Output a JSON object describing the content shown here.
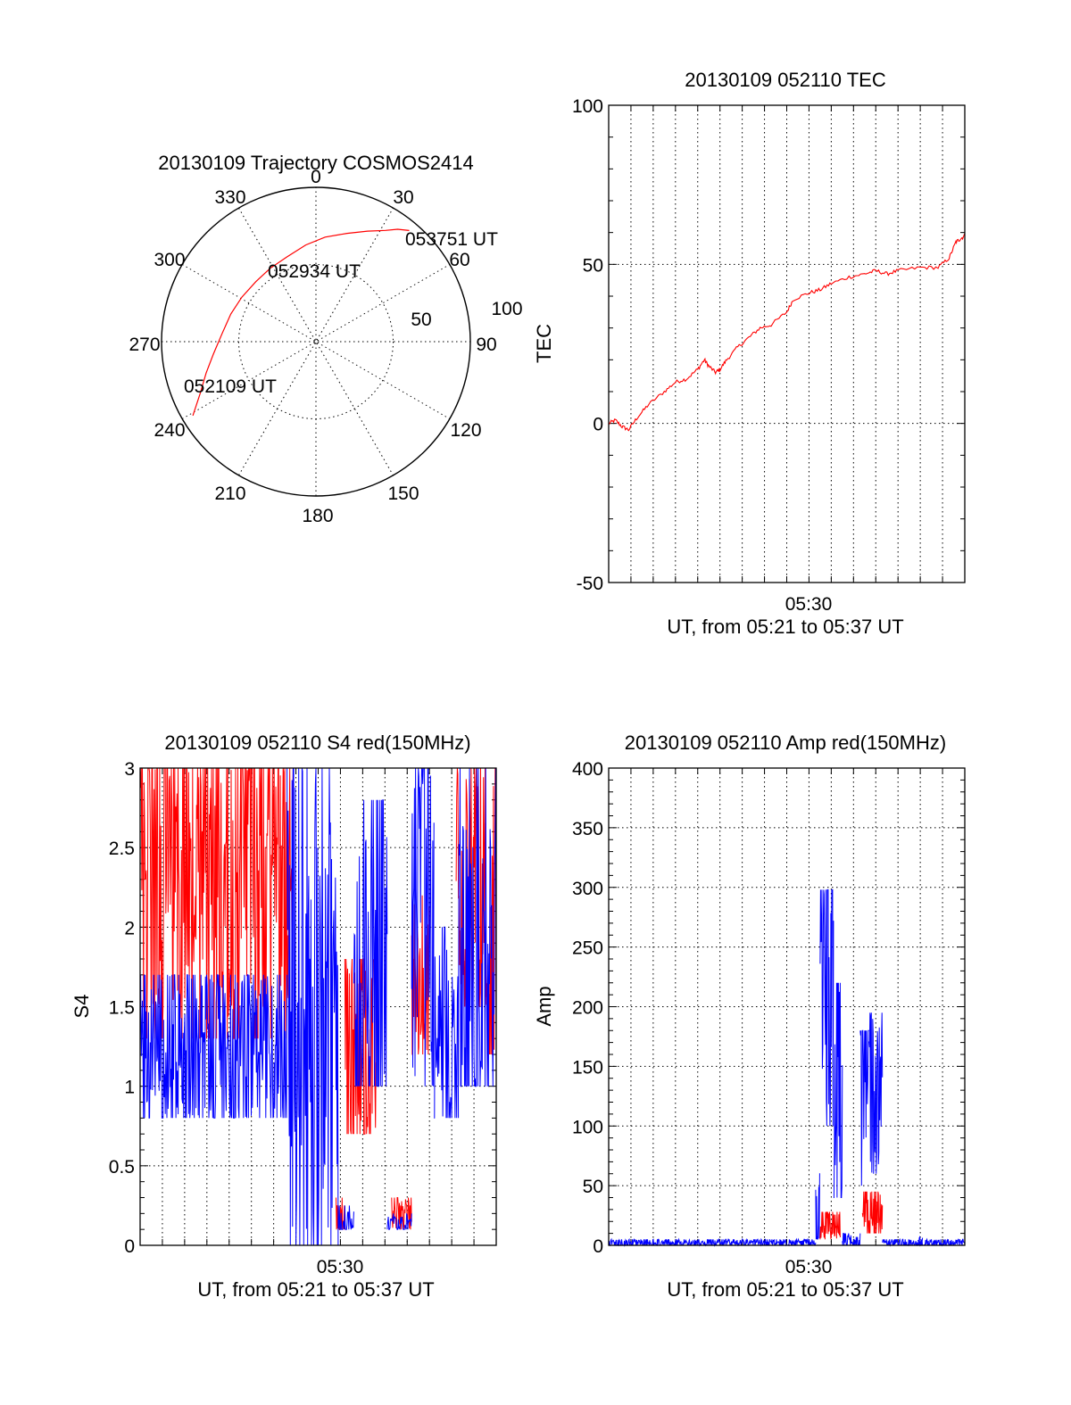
{
  "colors": {
    "red": "#ff0000",
    "blue": "#0000ff",
    "axis": "#000000"
  },
  "chart_data": [
    {
      "type": "polar",
      "title": "20130109 Trajectory COSMOS2414",
      "azimuth_labels": [
        "0",
        "30",
        "60",
        "90",
        "120",
        "150",
        "180",
        "210",
        "240",
        "270",
        "300",
        "330"
      ],
      "radial_labels": [
        "50",
        "100"
      ],
      "track": {
        "color": "#ff0000",
        "points": [
          {
            "az": 239,
            "r": 0.93
          },
          {
            "az": 246,
            "r": 0.82
          },
          {
            "az": 254,
            "r": 0.74
          },
          {
            "az": 263,
            "r": 0.67
          },
          {
            "az": 275,
            "r": 0.61
          },
          {
            "az": 288,
            "r": 0.58
          },
          {
            "az": 301,
            "r": 0.56
          },
          {
            "az": 315,
            "r": 0.55
          },
          {
            "az": 328,
            "r": 0.56
          },
          {
            "az": 341,
            "r": 0.58
          },
          {
            "az": 354,
            "r": 0.63
          },
          {
            "az": 5,
            "r": 0.68
          },
          {
            "az": 16,
            "r": 0.73
          },
          {
            "az": 25,
            "r": 0.79
          },
          {
            "az": 32,
            "r": 0.85
          },
          {
            "az": 36,
            "r": 0.9
          },
          {
            "az": 40,
            "r": 0.94
          }
        ]
      },
      "annotations": [
        "052109 UT",
        "052934 UT",
        "053751 UT"
      ]
    },
    {
      "type": "line",
      "title": "20130109 052110 TEC",
      "ylabel": "TEC",
      "xlabel": "UT, from 05:21 to 05:37 UT",
      "x_tick_label": "05:30",
      "ylim": [
        -50,
        100
      ],
      "y_ticks": [
        "-50",
        "0",
        "50",
        "100"
      ],
      "series": [
        {
          "color": "#ff0000",
          "points": [
            [
              0,
              0
            ],
            [
              0.3,
              1
            ],
            [
              0.6,
              -1
            ],
            [
              0.9,
              -2
            ],
            [
              1.3,
              2
            ],
            [
              1.8,
              6
            ],
            [
              2.5,
              10
            ],
            [
              3.0,
              13
            ],
            [
              3.5,
              14
            ],
            [
              4.0,
              17
            ],
            [
              4.3,
              20
            ],
            [
              4.5,
              18
            ],
            [
              4.8,
              16
            ],
            [
              5.0,
              17
            ],
            [
              5.3,
              20
            ],
            [
              5.8,
              24
            ],
            [
              6.3,
              27
            ],
            [
              6.8,
              30
            ],
            [
              7.3,
              31
            ],
            [
              8.0,
              35
            ],
            [
              8.3,
              39
            ],
            [
              9.0,
              41
            ],
            [
              9.5,
              42
            ],
            [
              10.0,
              44
            ],
            [
              10.8,
              46
            ],
            [
              11.5,
              47
            ],
            [
              12.0,
              48
            ],
            [
              12.5,
              47
            ],
            [
              13.0,
              48
            ],
            [
              14.0,
              49
            ],
            [
              14.8,
              49
            ],
            [
              15.3,
              52
            ],
            [
              15.6,
              57
            ],
            [
              15.8,
              58
            ],
            [
              16.0,
              59
            ]
          ]
        }
      ]
    },
    {
      "type": "line",
      "title": "20130109 052110 S4 red(150MHz)",
      "ylabel": "S4",
      "xlabel": "UT, from 05:21 to 05:37 UT",
      "x_tick_label": "05:30",
      "ylim": [
        0,
        3
      ],
      "y_ticks": [
        "0",
        "0.5",
        "1",
        "1.5",
        "2",
        "2.5",
        "3"
      ],
      "series": [
        {
          "color": "#ff0000",
          "segments": [
            {
              "x0": 0,
              "x1": 6.9,
              "min": 1.3,
              "max": 3,
              "mean": 2.35
            },
            {
              "x0": 8.8,
              "x1": 9.2,
              "min": 0.1,
              "max": 0.3,
              "mean": 0.15
            },
            {
              "x0": 9.2,
              "x1": 10.6,
              "min": 0.7,
              "max": 1.8,
              "mean": 1.2
            },
            {
              "x0": 11.3,
              "x1": 12.2,
              "min": 0.1,
              "max": 0.3,
              "mean": 0.2
            },
            {
              "x0": 12.2,
              "x1": 13.0,
              "min": 1.2,
              "max": 2.2,
              "mean": 1.6
            },
            {
              "x0": 14.2,
              "x1": 15.5,
              "min": 1.5,
              "max": 3,
              "mean": 2.4
            },
            {
              "x0": 15.5,
              "x1": 16.0,
              "min": 1.2,
              "max": 3,
              "mean": 2.0
            }
          ]
        },
        {
          "color": "#0000ff",
          "segments": [
            {
              "x0": 0,
              "x1": 6.6,
              "min": 0.8,
              "max": 1.7,
              "mean": 1.2
            },
            {
              "x0": 6.6,
              "x1": 8.9,
              "min": 0,
              "max": 3,
              "mean": 1.5
            },
            {
              "x0": 8.9,
              "x1": 9.6,
              "min": 0.1,
              "max": 0.25,
              "mean": 0.13
            },
            {
              "x0": 9.6,
              "x1": 11.1,
              "min": 1.0,
              "max": 2.8,
              "mean": 1.6
            },
            {
              "x0": 11.1,
              "x1": 12.2,
              "min": 0.1,
              "max": 0.2,
              "mean": 0.13
            },
            {
              "x0": 12.2,
              "x1": 13.2,
              "min": 1.0,
              "max": 3,
              "mean": 2.0
            },
            {
              "x0": 13.2,
              "x1": 14.3,
              "min": 0.8,
              "max": 2.0,
              "mean": 1.2
            },
            {
              "x0": 14.3,
              "x1": 16.0,
              "min": 1.0,
              "max": 3,
              "mean": 1.6
            }
          ]
        }
      ]
    },
    {
      "type": "line",
      "title": "20130109 052110 Amp red(150MHz)",
      "ylabel": "Amp",
      "xlabel": "UT, from 05:21 to 05:37 UT",
      "x_tick_label": "05:30",
      "ylim": [
        0,
        400
      ],
      "y_ticks": [
        "0",
        "50",
        "100",
        "150",
        "200",
        "250",
        "300",
        "350",
        "400"
      ],
      "series": [
        {
          "color": "#ff0000",
          "segments": [
            {
              "x0": 9.5,
              "x1": 10.4,
              "min": 5,
              "max": 28,
              "mean": 18
            },
            {
              "x0": 11.4,
              "x1": 12.3,
              "min": 10,
              "max": 45,
              "mean": 30
            }
          ]
        },
        {
          "color": "#0000ff",
          "segments": [
            {
              "x0": 0,
              "x1": 9.3,
              "min": 0,
              "max": 5,
              "mean": 2
            },
            {
              "x0": 9.3,
              "x1": 9.5,
              "min": 5,
              "max": 60,
              "mean": 20
            },
            {
              "x0": 9.5,
              "x1": 10.1,
              "min": 100,
              "max": 298,
              "mean": 200
            },
            {
              "x0": 10.1,
              "x1": 10.5,
              "min": 40,
              "max": 220,
              "mean": 120
            },
            {
              "x0": 10.5,
              "x1": 11.3,
              "min": 0,
              "max": 10,
              "mean": 3
            },
            {
              "x0": 11.3,
              "x1": 11.7,
              "min": 50,
              "max": 180,
              "mean": 140
            },
            {
              "x0": 11.7,
              "x1": 12.3,
              "min": 60,
              "max": 195,
              "mean": 120
            },
            {
              "x0": 12.3,
              "x1": 16.0,
              "min": 0,
              "max": 5,
              "mean": 2
            },
            {
              "x0": 13.9,
              "x1": 14.1,
              "min": 0,
              "max": 7,
              "mean": 4
            }
          ]
        }
      ]
    }
  ]
}
